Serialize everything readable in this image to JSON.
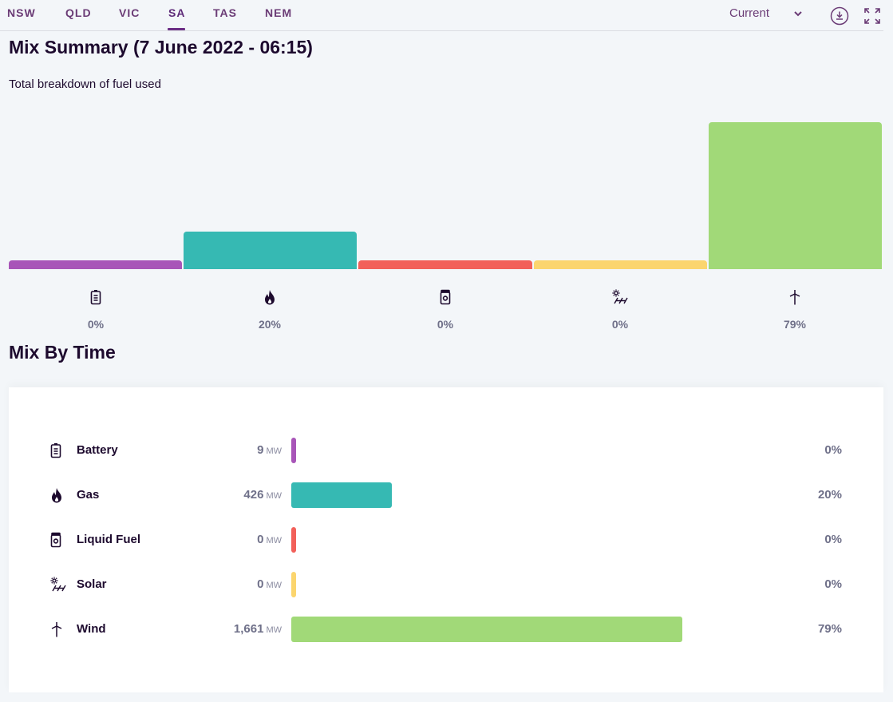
{
  "tabs": [
    {
      "label": "NSW"
    },
    {
      "label": "QLD"
    },
    {
      "label": "VIC"
    },
    {
      "label": "SA",
      "active": true
    },
    {
      "label": "TAS"
    },
    {
      "label": "NEM"
    }
  ],
  "period": {
    "selected": "Current"
  },
  "icons": {
    "download": "download-icon",
    "fullscreen": "fullscreen-icon",
    "chevron": "chevron-down-icon"
  },
  "summary": {
    "title": "Mix Summary (7 June 2022 - 06:15)",
    "subtitle": "Total breakdown of fuel used"
  },
  "time_section": {
    "title": "Mix By Time"
  },
  "fuels": [
    {
      "name": "Battery",
      "icon": "battery-icon",
      "mw": "9",
      "unit": "MW",
      "pct": "0%",
      "color": "#a855b8"
    },
    {
      "name": "Gas",
      "icon": "flame-icon",
      "mw": "426",
      "unit": "MW",
      "pct": "20%",
      "color": "#36b9b3"
    },
    {
      "name": "Liquid Fuel",
      "icon": "fuel-can-icon",
      "mw": "0",
      "unit": "MW",
      "pct": "0%",
      "color": "#f2605a"
    },
    {
      "name": "Solar",
      "icon": "solar-icon",
      "mw": "0",
      "unit": "MW",
      "pct": "0%",
      "color": "#fbd56e"
    },
    {
      "name": "Wind",
      "icon": "wind-turbine-icon",
      "mw": "1,661",
      "unit": "MW",
      "pct": "79%",
      "color": "#a1d978"
    }
  ],
  "chart_data": {
    "type": "bar",
    "categories": [
      "Battery",
      "Gas",
      "Liquid Fuel",
      "Solar",
      "Wind"
    ],
    "values": [
      9,
      426,
      0,
      0,
      1661
    ],
    "percent": [
      0,
      20,
      0,
      0,
      79
    ],
    "title": "Mix Summary (7 June 2022 - 06:15)",
    "subtitle": "Total breakdown of fuel used",
    "xlabel": "",
    "ylabel": "",
    "unit": "MW"
  }
}
